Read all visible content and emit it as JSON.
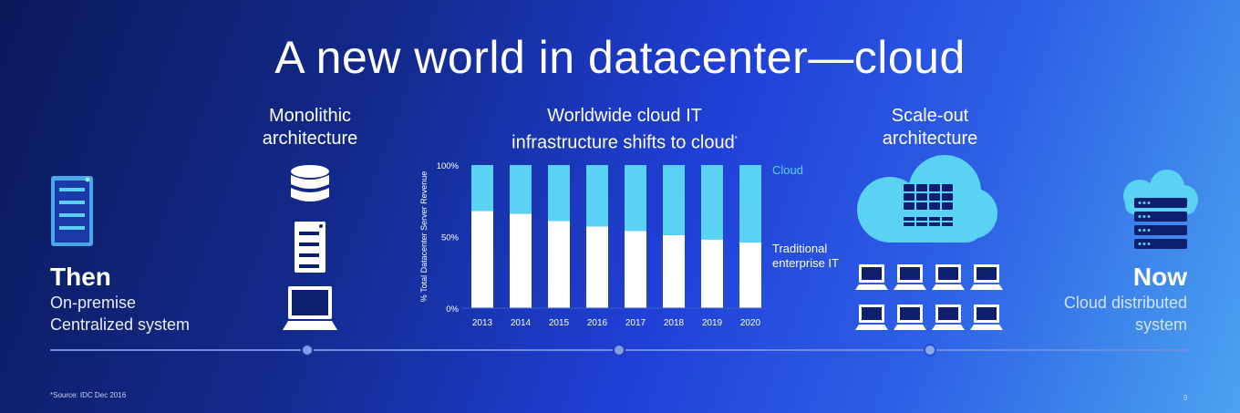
{
  "title": "A new world in datacenter—cloud",
  "left": {
    "heading": "Then",
    "sub_lines": [
      "On-premise",
      "Centralized system"
    ]
  },
  "right": {
    "heading": "Now",
    "sub_lines": [
      "Cloud distributed",
      "system"
    ]
  },
  "columns": {
    "monolithic": [
      "Monolithic",
      "architecture"
    ],
    "chart": [
      "Worldwide cloud IT",
      "infrastructure shifts to cloud"
    ],
    "chart_mark": "*",
    "scaleout": [
      "Scale-out",
      "architecture"
    ]
  },
  "footnote": "*Source:  IDC Dec 2016",
  "page_number": "9",
  "colors": {
    "cloud": "#5ad2f4",
    "traditional": "#ffffff",
    "timeline": "#6f8de0",
    "icon_dark": "#0d1f6e"
  },
  "icons": [
    "server-rack-icon",
    "database-icon",
    "server-tower-icon",
    "laptop-icon",
    "cloud-servers-icon",
    "laptop-icon",
    "cloud-server-icon"
  ],
  "chart_data": {
    "type": "bar",
    "stacked": true,
    "categories": [
      "2013",
      "2014",
      "2015",
      "2016",
      "2017",
      "2018",
      "2019",
      "2020"
    ],
    "series": [
      {
        "name": "Traditional enterprise IT",
        "values": [
          68,
          66,
          61,
          57,
          54,
          51,
          48,
          46
        ]
      },
      {
        "name": "Cloud",
        "values": [
          32,
          34,
          39,
          43,
          46,
          49,
          52,
          54
        ]
      }
    ],
    "ylabel": "% Total Datacenter Server Revenue",
    "yticks": [
      "0%",
      "50%",
      "100%"
    ],
    "ylim": [
      0,
      100
    ],
    "grid": false,
    "legend": [
      "Cloud",
      "Traditional enterprise IT"
    ]
  }
}
